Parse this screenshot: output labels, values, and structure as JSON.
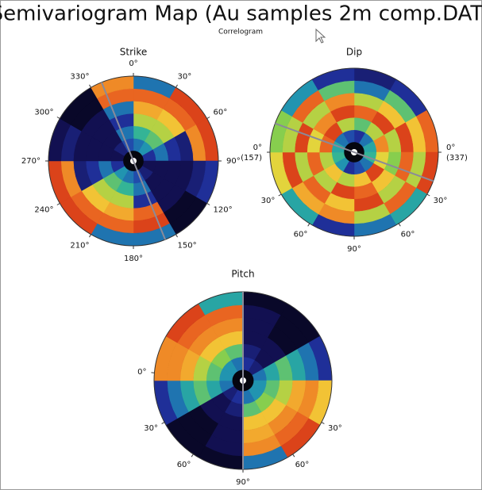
{
  "title": "Semivariogram Map (Au samples 2m comp.DAT)",
  "subtitle": "Correlogram",
  "colormap": [
    "#000000",
    "#14125a",
    "#2236a8",
    "#1e8fb4",
    "#2fb39a",
    "#8ccf4a",
    "#f2d53a",
    "#f29a2a",
    "#e4481c",
    "#8a1208"
  ],
  "chart_data": [
    {
      "type": "polar-heatmap",
      "title": "Strike",
      "direction": 338,
      "angle_ticks": [
        {
          "value": 0,
          "label": "0°"
        },
        {
          "value": 30,
          "label": "30°"
        },
        {
          "value": 60,
          "label": "60°"
        },
        {
          "value": 90,
          "label": "90°"
        },
        {
          "value": 120,
          "label": "120°"
        },
        {
          "value": 150,
          "label": "150°"
        },
        {
          "value": 180,
          "label": "180°"
        },
        {
          "value": 210,
          "label": "210°"
        },
        {
          "value": 240,
          "label": "240°"
        },
        {
          "value": 270,
          "label": "270°"
        },
        {
          "value": 300,
          "label": "300°"
        },
        {
          "value": 330,
          "label": "330°"
        }
      ],
      "values": [
        [
          0.3,
          0.45,
          0.6,
          0.75,
          0.85,
          0.3
        ],
        [
          0.35,
          0.5,
          0.6,
          0.7,
          0.85,
          0.9
        ],
        [
          0.2,
          0.3,
          0.2,
          0.15,
          0.8,
          0.9
        ],
        [
          0.1,
          0.1,
          0.1,
          0.1,
          0.15,
          0.2
        ],
        [
          0.15,
          0.1,
          0.1,
          0.1,
          0.05,
          0.05
        ],
        [
          0.25,
          0.3,
          0.2,
          0.85,
          0.9,
          0.3
        ],
        [
          0.3,
          0.45,
          0.6,
          0.75,
          0.85,
          0.3
        ],
        [
          0.35,
          0.5,
          0.6,
          0.7,
          0.85,
          0.9
        ],
        [
          0.2,
          0.3,
          0.2,
          0.15,
          0.8,
          0.9
        ],
        [
          0.1,
          0.1,
          0.1,
          0.1,
          0.15,
          0.1
        ],
        [
          0.15,
          0.1,
          0.1,
          0.1,
          0.05,
          0.05
        ],
        [
          0.25,
          0.3,
          0.2,
          0.3,
          0.85,
          0.8
        ]
      ]
    },
    {
      "type": "polar-heatmap",
      "title": "Dip",
      "direction": 290,
      "angle_ticks": [
        {
          "value": 270,
          "label": "0°",
          "sub": "(157)"
        },
        {
          "value": 240,
          "label": "30°"
        },
        {
          "value": 212,
          "label": "60°"
        },
        {
          "value": 180,
          "label": "90°"
        },
        {
          "value": 148,
          "label": "60°"
        },
        {
          "value": 120,
          "label": "30°"
        },
        {
          "value": 90,
          "label": "0°",
          "sub": "(337)"
        }
      ],
      "values": [
        [
          0.2,
          0.5,
          0.85,
          0.6,
          0.3,
          0.15
        ],
        [
          0.3,
          0.6,
          0.9,
          0.7,
          0.5,
          0.2
        ],
        [
          0.4,
          0.8,
          0.6,
          0.9,
          0.7,
          0.85
        ],
        [
          0.45,
          0.65,
          0.55,
          0.85,
          0.6,
          0.9
        ],
        [
          0.3,
          0.9,
          0.7,
          0.6,
          0.85,
          0.4
        ],
        [
          0.25,
          0.7,
          0.85,
          0.9,
          0.6,
          0.3
        ],
        [
          0.2,
          0.6,
          0.9,
          0.7,
          0.8,
          0.2
        ],
        [
          0.35,
          0.7,
          0.6,
          0.85,
          0.75,
          0.4
        ],
        [
          0.45,
          0.6,
          0.85,
          0.6,
          0.9,
          0.65
        ],
        [
          0.4,
          0.85,
          0.65,
          0.9,
          0.6,
          0.55
        ],
        [
          0.3,
          0.9,
          0.8,
          0.6,
          0.85,
          0.35
        ],
        [
          0.25,
          0.6,
          0.9,
          0.8,
          0.5,
          0.2
        ]
      ]
    },
    {
      "type": "polar-heatmap",
      "title": "Pitch",
      "direction": 0,
      "angle_ticks": [
        {
          "value": 275,
          "label": "0°"
        },
        {
          "value": 242,
          "label": "30°"
        },
        {
          "value": 214,
          "label": "60°"
        },
        {
          "value": 180,
          "label": "90°"
        },
        {
          "value": 146,
          "label": "60°"
        },
        {
          "value": 118,
          "label": "30°"
        }
      ],
      "values": [
        [
          0.2,
          0.15,
          0.1,
          0.1,
          0.1,
          0.05
        ],
        [
          0.15,
          0.1,
          0.1,
          0.05,
          0.05,
          0.05
        ],
        [
          0.3,
          0.4,
          0.5,
          0.4,
          0.3,
          0.2
        ],
        [
          0.35,
          0.5,
          0.6,
          0.75,
          0.8,
          0.7
        ],
        [
          0.35,
          0.55,
          0.7,
          0.8,
          0.85,
          0.9
        ],
        [
          0.3,
          0.5,
          0.7,
          0.75,
          0.8,
          0.3
        ],
        [
          0.2,
          0.15,
          0.1,
          0.1,
          0.1,
          0.05
        ],
        [
          0.15,
          0.1,
          0.1,
          0.05,
          0.05,
          0.05
        ],
        [
          0.3,
          0.4,
          0.5,
          0.4,
          0.3,
          0.2
        ],
        [
          0.35,
          0.5,
          0.6,
          0.75,
          0.8,
          0.8
        ],
        [
          0.35,
          0.55,
          0.7,
          0.8,
          0.85,
          0.9
        ],
        [
          0.3,
          0.5,
          0.7,
          0.8,
          0.85,
          0.4
        ]
      ]
    }
  ]
}
